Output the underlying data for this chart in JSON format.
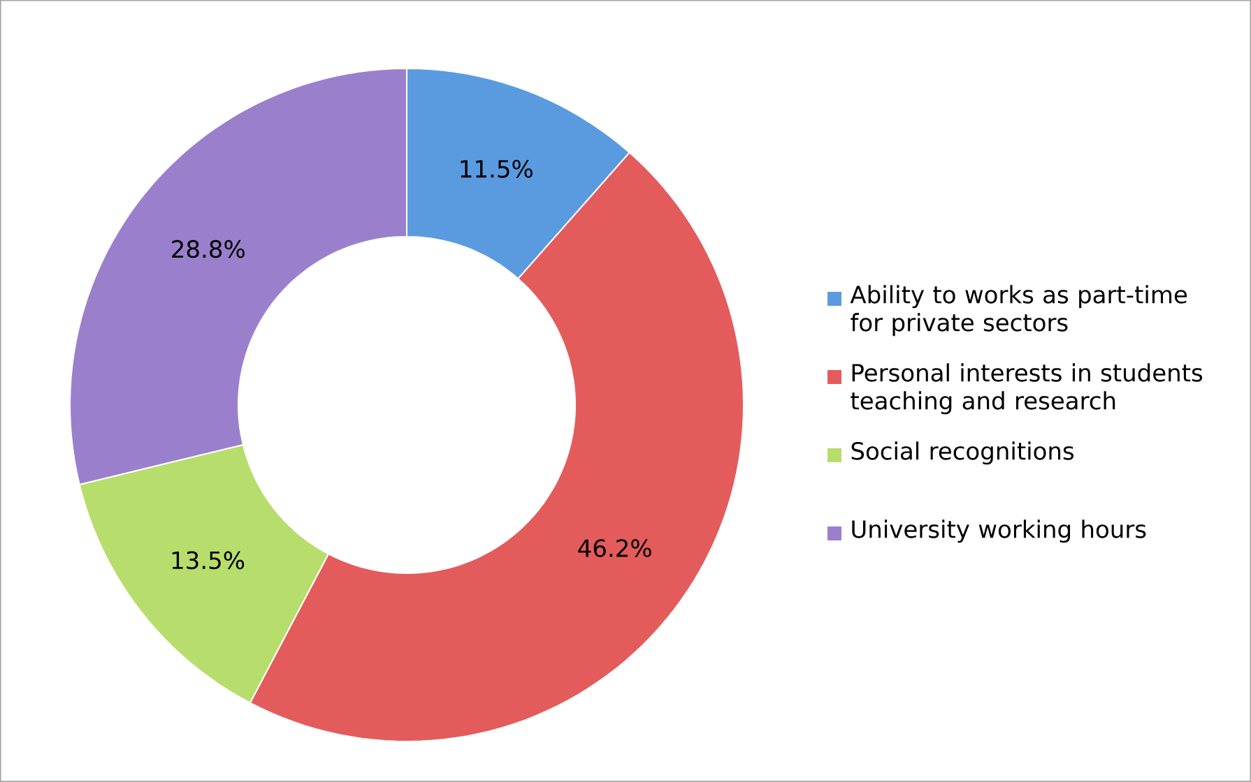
{
  "chart_data": {
    "type": "donut",
    "categories": [
      "Ability to works as part-time for private sectors",
      "Personal interests in students teaching and research",
      "Social recognitions",
      "University working hours"
    ],
    "values": [
      11.5,
      46.2,
      13.5,
      28.8
    ],
    "value_labels": [
      "11.5%",
      "46.2%",
      "13.5%",
      "28.8%"
    ],
    "colors": [
      "#5a9be0",
      "#e45b5b",
      "#b7dd6c",
      "#9a80cc"
    ],
    "legend": "right"
  }
}
